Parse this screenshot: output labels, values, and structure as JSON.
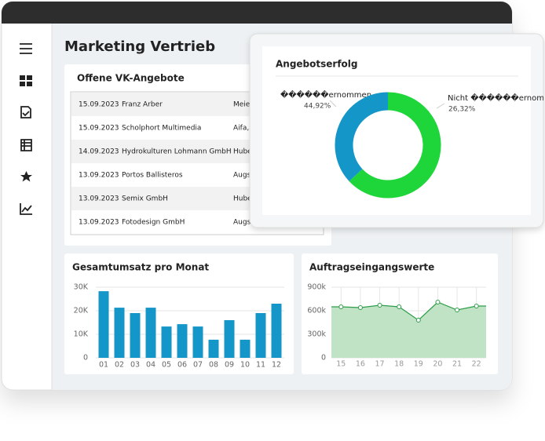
{
  "header": {
    "title": "Marketing  Vertrieb"
  },
  "offers": {
    "title": "Offene VK-Angebote",
    "rows": [
      [
        "15.09.2023",
        "Franz Arber",
        "Meie"
      ],
      [
        "15.09.2023",
        "Scholphort Multimedia",
        "Aifa,"
      ],
      [
        "14.09.2023",
        "Hydrokulturen Lohmann GmbH",
        "Hube"
      ],
      [
        "13.09.2023",
        "Portos Ballisteros",
        "Augs"
      ],
      [
        "13.09.2023",
        "Semix GmbH",
        "Hube"
      ],
      [
        "13.09.2023",
        "Fotodesign GmbH",
        "Augs"
      ]
    ]
  },
  "success": {
    "type": "pie",
    "title": "Angebotserfolg",
    "categories": [
      "������ernommen",
      "Nicht ������ernommen"
    ],
    "values": [
      44.92,
      26.32
    ],
    "value_labels": [
      "44,92%",
      "26,32%"
    ],
    "colors": [
      "#1ed63a",
      "#1596c8"
    ]
  },
  "revenue": {
    "type": "bar",
    "title": "Gesamtumsatz pro Monat",
    "categories": [
      "01",
      "02",
      "03",
      "04",
      "05",
      "06",
      "07",
      "08",
      "09",
      "10",
      "11",
      "12"
    ],
    "values": [
      28300,
      21300,
      19000,
      21300,
      13300,
      14300,
      13300,
      7700,
      16000,
      7700,
      19000,
      23000
    ],
    "color": "#1596c8",
    "ylim": [
      0,
      30000
    ],
    "yticks": [
      0,
      {
        "value": 10000,
        "label": "10K"
      },
      {
        "value": 20000,
        "label": "20K"
      },
      {
        "value": 30000,
        "label": "30K"
      }
    ],
    "grid": true
  },
  "orders": {
    "type": "area",
    "title": "Auftragseingangswerte",
    "categories": [
      "15",
      "16",
      "17",
      "18",
      "19",
      "20",
      "21",
      "22"
    ],
    "values": [
      650000,
      640000,
      670000,
      650000,
      480000,
      710000,
      610000,
      660000
    ],
    "color": "#2e9e4a",
    "ylim": [
      0,
      900000
    ],
    "yticks": [
      0,
      {
        "value": 300000,
        "label": "300k"
      },
      {
        "value": 600000,
        "label": "600k"
      },
      {
        "value": 900000,
        "label": "900k"
      }
    ],
    "grid": true
  }
}
